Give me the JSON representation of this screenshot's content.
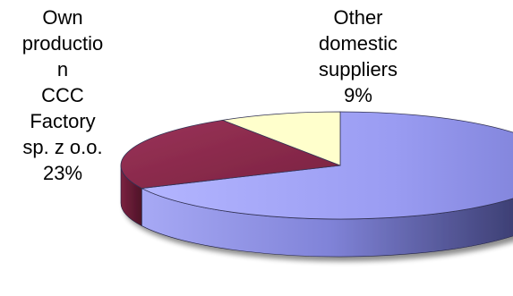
{
  "chart_data": {
    "type": "pie",
    "three_d": true,
    "legend": "none",
    "slices": [
      {
        "label_lines": [
          "Own",
          "productio",
          "n",
          "CCC",
          "Factory",
          "sp. z o.o."
        ],
        "value": 23,
        "value_label": "23%",
        "color": "#8b2a4a",
        "side_color": "#6a1d36"
      },
      {
        "label_lines": [
          "Other",
          "domestic",
          "suppliers"
        ],
        "value": 9,
        "value_label": "9%",
        "color": "#ffffcc",
        "side_color": "#d9d9a8"
      },
      {
        "label_lines": [],
        "value": 68,
        "value_label": "",
        "color": "#9a9cf2",
        "side_color": "#5b5ea8"
      }
    ]
  }
}
